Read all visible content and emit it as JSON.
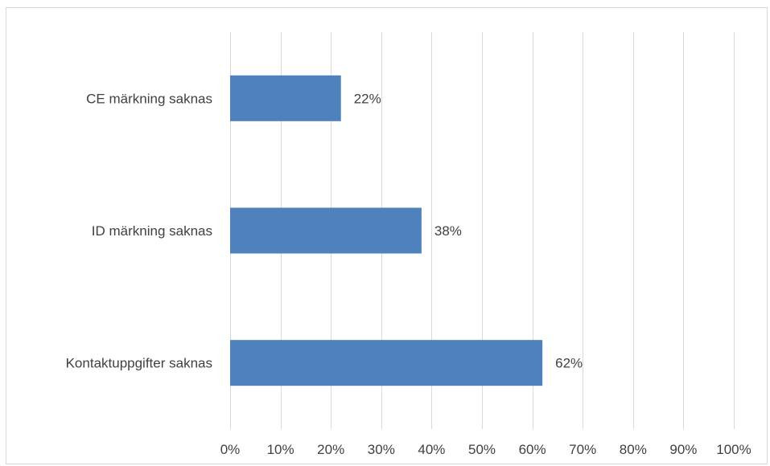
{
  "chart_data": {
    "type": "bar",
    "orientation": "horizontal",
    "categories": [
      "CE märkning saknas",
      "ID märkning saknas",
      "Kontaktuppgifter saknas"
    ],
    "values": [
      22,
      38,
      62
    ],
    "data_labels": [
      "22%",
      "38%",
      "62%"
    ],
    "xlim": [
      0,
      100
    ],
    "x_ticks": [
      0,
      10,
      20,
      30,
      40,
      50,
      60,
      70,
      80,
      90,
      100
    ],
    "x_tick_labels": [
      "0%",
      "10%",
      "20%",
      "30%",
      "40%",
      "50%",
      "60%",
      "70%",
      "80%",
      "90%",
      "100%"
    ],
    "grid": true,
    "legend": "none",
    "colors": {
      "bar": "#4f81bd",
      "grid": "#d9d9d9",
      "text": "#404040"
    }
  }
}
